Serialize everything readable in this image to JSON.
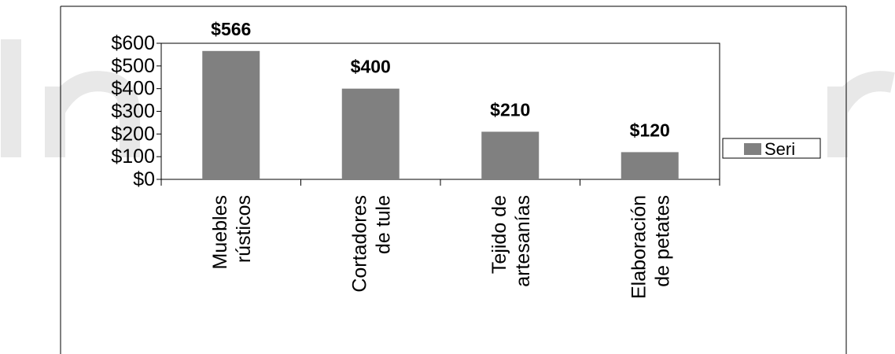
{
  "chart_data": {
    "type": "bar",
    "categories": [
      [
        "Muebles",
        "rústicos"
      ],
      [
        "Cortadores",
        "de tule"
      ],
      [
        "Tejido de",
        "artesanías"
      ],
      [
        "Elaboración",
        "de petates"
      ]
    ],
    "series": [
      {
        "name": "Seri",
        "values": [
          566,
          400,
          210,
          120
        ],
        "color": "#808080"
      }
    ],
    "data_labels": [
      "$566",
      "$400",
      "$210",
      "$120"
    ],
    "y_ticks": [
      "$0",
      "$100",
      "$200",
      "$300",
      "$400",
      "$500",
      "$600"
    ],
    "ylim": [
      0,
      600
    ],
    "title": "",
    "xlabel": "",
    "ylabel": "",
    "grid": false,
    "legend_position": "right"
  },
  "colors": {
    "bar": "#808080",
    "watermark": "#e6e6e6"
  }
}
